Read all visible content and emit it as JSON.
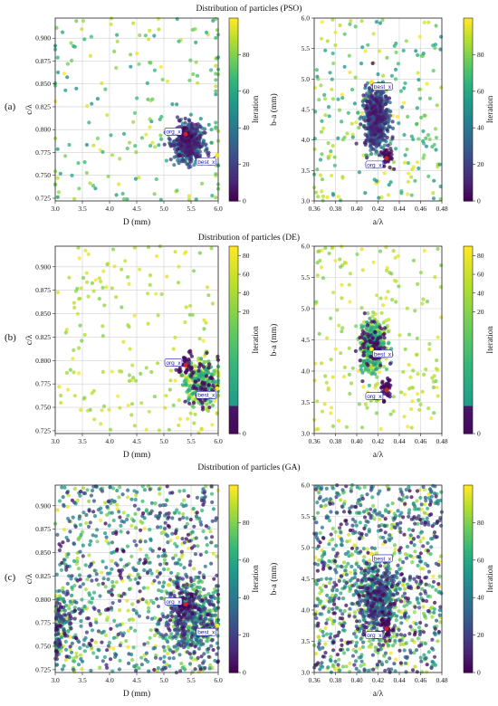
{
  "chart_data": [
    {
      "type": "scatter",
      "row": 0,
      "title": "Distribution of particles (PSO)",
      "panel_label": "(a)",
      "algorithm": "PSO",
      "xlabel": "D (mm)",
      "ylabel": "c/λ",
      "xlim": [
        3.0,
        6.0
      ],
      "ylim": [
        0.722,
        0.922
      ],
      "xticks": [
        "3.0",
        "3.5",
        "4.0",
        "4.5",
        "5.0",
        "5.5",
        "6.0"
      ],
      "yticks": [
        "0.725",
        "0.750",
        "0.775",
        "0.800",
        "0.825",
        "0.850",
        "0.875",
        "0.900"
      ],
      "colorbar_label": "Iteration",
      "colorbar_ticks": [
        "0",
        "20",
        "40",
        "60",
        "80"
      ],
      "colorscale": "viridis",
      "grid": true,
      "point_count": 700,
      "cluster_center": [
        5.45,
        0.785
      ],
      "annotations": [
        {
          "text": "org_x",
          "x": 5.4,
          "y": 0.795
        },
        {
          "text": "best_x",
          "x": 5.98,
          "y": 0.772
        }
      ]
    },
    {
      "type": "scatter",
      "row": 0,
      "algorithm": "PSO",
      "xlabel": "a/λ",
      "ylabel": "b-a (mm)",
      "xlim": [
        0.36,
        0.48
      ],
      "ylim": [
        3.0,
        6.0
      ],
      "xticks": [
        "0.36",
        "0.38",
        "0.40",
        "0.42",
        "0.44",
        "0.46",
        "0.48"
      ],
      "yticks": [
        "3.0",
        "3.5",
        "4.0",
        "4.5",
        "5.0",
        "5.5",
        "6.0"
      ],
      "colorbar_label": "Iteration",
      "colorbar_ticks": [
        "0",
        "20",
        "40",
        "60",
        "80"
      ],
      "colorscale": "viridis",
      "grid": true,
      "point_count": 900,
      "cluster_center": [
        0.418,
        4.35
      ],
      "annotations": [
        {
          "text": "best_x",
          "x": 0.414,
          "y": 4.95
        },
        {
          "text": "org_x",
          "x": 0.428,
          "y": 3.7
        }
      ]
    },
    {
      "type": "scatter",
      "row": 1,
      "title": "Distribution of particles (DE)",
      "panel_label": "(b)",
      "algorithm": "DE",
      "xlabel": "D (mm)",
      "ylabel": "c/λ",
      "xlim": [
        3.0,
        6.0
      ],
      "ylim": [
        0.722,
        0.922
      ],
      "xticks": [
        "3.0",
        "3.5",
        "4.0",
        "4.5",
        "5.0",
        "5.5",
        "6.0"
      ],
      "yticks": [
        "0.725",
        "0.750",
        "0.775",
        "0.800",
        "0.825",
        "0.850",
        "0.875",
        "0.900"
      ],
      "colorbar_label": "Iteration",
      "colorbar_ticks": [
        "0",
        "20",
        "40",
        "60",
        "80"
      ],
      "colorscale": "de-compressed",
      "grid": true,
      "point_count": 550,
      "cluster_center": [
        5.7,
        0.775
      ],
      "annotations": [
        {
          "text": "org_x",
          "x": 5.4,
          "y": 0.795
        },
        {
          "text": "best_x",
          "x": 5.98,
          "y": 0.77
        }
      ]
    },
    {
      "type": "scatter",
      "row": 1,
      "algorithm": "DE",
      "xlabel": "a/λ",
      "ylabel": "b-a (mm)",
      "xlim": [
        0.36,
        0.48
      ],
      "ylim": [
        3.0,
        6.0
      ],
      "xticks": [
        "0.36",
        "0.38",
        "0.40",
        "0.42",
        "0.44",
        "0.46",
        "0.48"
      ],
      "yticks": [
        "3.0",
        "3.5",
        "4.0",
        "4.5",
        "5.0",
        "5.5",
        "6.0"
      ],
      "colorbar_label": "Iteration",
      "colorbar_ticks": [
        "0",
        "20",
        "40",
        "60",
        "80"
      ],
      "colorscale": "de-compressed",
      "grid": true,
      "point_count": 650,
      "cluster_center": [
        0.415,
        4.4
      ],
      "annotations": [
        {
          "text": "best_x",
          "x": 0.414,
          "y": 4.35
        },
        {
          "text": "org_x",
          "x": 0.428,
          "y": 3.7
        }
      ]
    },
    {
      "type": "scatter",
      "row": 2,
      "title": "Distribution of particles (GA)",
      "panel_label": "(c)",
      "algorithm": "GA",
      "xlabel": "D (mm)",
      "ylabel": "c/λ",
      "xlim": [
        3.0,
        6.0
      ],
      "ylim": [
        0.722,
        0.922
      ],
      "xticks": [
        "3.0",
        "3.5",
        "4.0",
        "4.5",
        "5.0",
        "5.5",
        "6.0"
      ],
      "yticks": [
        "0.725",
        "0.750",
        "0.775",
        "0.800",
        "0.825",
        "0.850",
        "0.875",
        "0.900"
      ],
      "colorbar_label": "Iteration",
      "colorbar_ticks": [
        "0",
        "20",
        "40",
        "60",
        "80"
      ],
      "colorscale": "viridis",
      "grid": true,
      "point_count": 1500,
      "cluster_center": [
        5.5,
        0.78
      ],
      "annotations": [
        {
          "text": "org_x",
          "x": 5.4,
          "y": 0.795
        },
        {
          "text": "best_x",
          "x": 5.98,
          "y": 0.772
        }
      ]
    },
    {
      "type": "scatter",
      "row": 2,
      "algorithm": "GA",
      "xlabel": "a/λ",
      "ylabel": "b-a (mm)",
      "xlim": [
        0.36,
        0.48
      ],
      "ylim": [
        3.0,
        6.0
      ],
      "xticks": [
        "0.36",
        "0.38",
        "0.40",
        "0.42",
        "0.44",
        "0.46",
        "0.48"
      ],
      "yticks": [
        "3.0",
        "3.5",
        "4.0",
        "4.5",
        "5.0",
        "5.5",
        "6.0"
      ],
      "colorbar_label": "Iteration",
      "colorbar_ticks": [
        "0",
        "20",
        "40",
        "60",
        "80"
      ],
      "colorscale": "viridis",
      "grid": true,
      "point_count": 1500,
      "cluster_center": [
        0.42,
        4.2
      ],
      "annotations": [
        {
          "text": "best_x",
          "x": 0.414,
          "y": 4.9
        },
        {
          "text": "org_x",
          "x": 0.428,
          "y": 3.7
        }
      ]
    }
  ]
}
